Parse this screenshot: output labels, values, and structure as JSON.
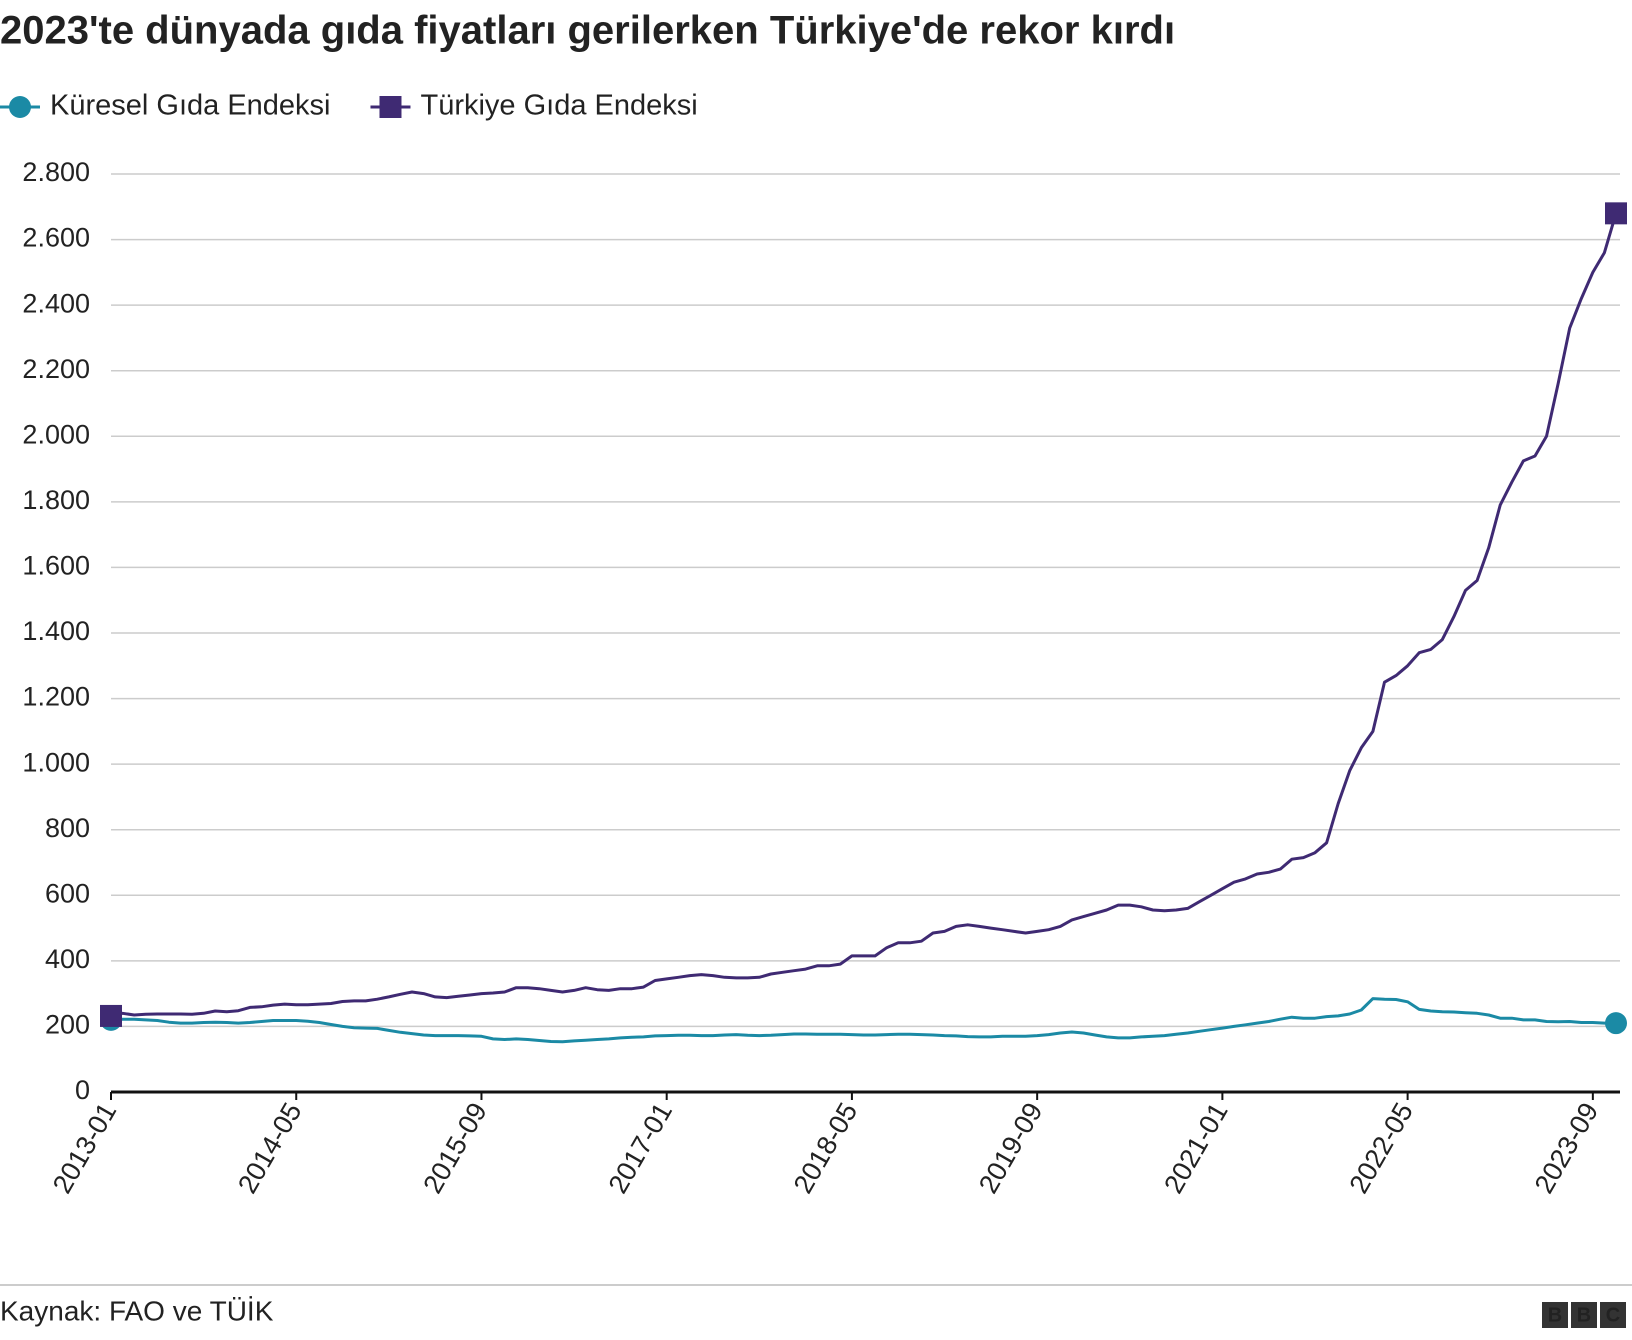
{
  "chart_data": {
    "type": "line",
    "title": "2023'te dünyada gıda fiyatları gerilerken Türkiye'de rekor kırdı",
    "source": "Kaynak: FAO ve TÜİK",
    "logo": "BBC",
    "categories": [
      "2013-01",
      null,
      null,
      null,
      null,
      null,
      null,
      null,
      null,
      null,
      null,
      null,
      null,
      null,
      null,
      null,
      "2014-05",
      null,
      null,
      null,
      null,
      null,
      null,
      null,
      null,
      null,
      null,
      null,
      null,
      null,
      null,
      null,
      "2015-09",
      null,
      null,
      null,
      null,
      null,
      null,
      null,
      null,
      null,
      null,
      null,
      null,
      null,
      null,
      null,
      "2017-01",
      null,
      null,
      null,
      null,
      null,
      null,
      null,
      null,
      null,
      null,
      null,
      null,
      null,
      null,
      null,
      "2018-05",
      null,
      null,
      null,
      null,
      null,
      null,
      null,
      null,
      null,
      null,
      null,
      null,
      null,
      null,
      null,
      "2019-09",
      null,
      null,
      null,
      null,
      null,
      null,
      null,
      null,
      null,
      null,
      null,
      null,
      null,
      null,
      null,
      "2021-01",
      null,
      null,
      null,
      null,
      null,
      null,
      null,
      null,
      null,
      null,
      null,
      null,
      null,
      null,
      null,
      "2022-05",
      null,
      null,
      null,
      null,
      null,
      null,
      null,
      null,
      null,
      null,
      null,
      null,
      null,
      null,
      null,
      "2023-09",
      null,
      null
    ],
    "series": [
      {
        "name": "Küresel Gıda Endeksi",
        "color": "#1b8aa5",
        "marker": "circle",
        "values": [
          220,
          222,
          222,
          220,
          218,
          213,
          210,
          210,
          212,
          213,
          212,
          210,
          212,
          215,
          218,
          218,
          218,
          216,
          212,
          206,
          200,
          196,
          195,
          194,
          188,
          182,
          178,
          174,
          172,
          172,
          172,
          171,
          170,
          162,
          160,
          162,
          160,
          157,
          154,
          153,
          156,
          158,
          160,
          162,
          165,
          167,
          168,
          171,
          172,
          173,
          173,
          172,
          172,
          174,
          175,
          173,
          172,
          173,
          175,
          177,
          177,
          176,
          176,
          176,
          175,
          174,
          174,
          175,
          176,
          176,
          175,
          174,
          172,
          171,
          169,
          168,
          168,
          170,
          170,
          170,
          172,
          175,
          180,
          183,
          180,
          174,
          168,
          165,
          165,
          168,
          170,
          172,
          176,
          180,
          185,
          190,
          195,
          200,
          205,
          210,
          215,
          222,
          228,
          225,
          225,
          230,
          232,
          238,
          250,
          285,
          283,
          282,
          275,
          252,
          247,
          245,
          244,
          242,
          240,
          235,
          225,
          225,
          220,
          220,
          215,
          214,
          215,
          212,
          212,
          210,
          210
        ]
      },
      {
        "name": "Türkiye Gıda Endeksi",
        "color": "#3f2a73",
        "marker": "square",
        "values": [
          232,
          240,
          235,
          237,
          238,
          238,
          238,
          237,
          240,
          247,
          245,
          248,
          258,
          260,
          265,
          268,
          266,
          266,
          268,
          270,
          276,
          278,
          278,
          283,
          290,
          298,
          305,
          300,
          290,
          288,
          292,
          296,
          300,
          302,
          305,
          318,
          318,
          315,
          310,
          305,
          310,
          318,
          312,
          310,
          315,
          315,
          320,
          340,
          345,
          350,
          355,
          358,
          355,
          350,
          348,
          348,
          350,
          360,
          365,
          370,
          375,
          385,
          385,
          390,
          415,
          415,
          415,
          440,
          455,
          455,
          460,
          485,
          490,
          505,
          510,
          505,
          500,
          495,
          490,
          485,
          490,
          495,
          505,
          525,
          535,
          545,
          555,
          570,
          570,
          565,
          555,
          553,
          555,
          560,
          580,
          600,
          620,
          640,
          650,
          665,
          670,
          680,
          710,
          715,
          730,
          760,
          880,
          980,
          1050,
          1100,
          1250,
          1270,
          1300,
          1340,
          1350,
          1380,
          1450,
          1530,
          1560,
          1660,
          1790,
          1860,
          1925,
          1940,
          2000,
          2160,
          2330,
          2420,
          2500,
          2560,
          2680
        ]
      }
    ],
    "ylim": [
      0,
      2800
    ],
    "yticks": [
      0,
      200,
      400,
      600,
      800,
      {
        "value": 1000,
        "label": "1.000"
      },
      {
        "value": 1200,
        "label": "1.200"
      },
      {
        "value": 1400,
        "label": "1.400"
      },
      {
        "value": 1600,
        "label": "1.600"
      },
      {
        "value": 1800,
        "label": "1.800"
      },
      {
        "value": 2000,
        "label": "2.000"
      },
      {
        "value": 2200,
        "label": "2.200"
      },
      {
        "value": 2400,
        "label": "2.400"
      },
      {
        "value": 2600,
        "label": "2.600"
      },
      {
        "value": 2800,
        "label": "2.800"
      }
    ],
    "grid": true,
    "legend": "top"
  }
}
